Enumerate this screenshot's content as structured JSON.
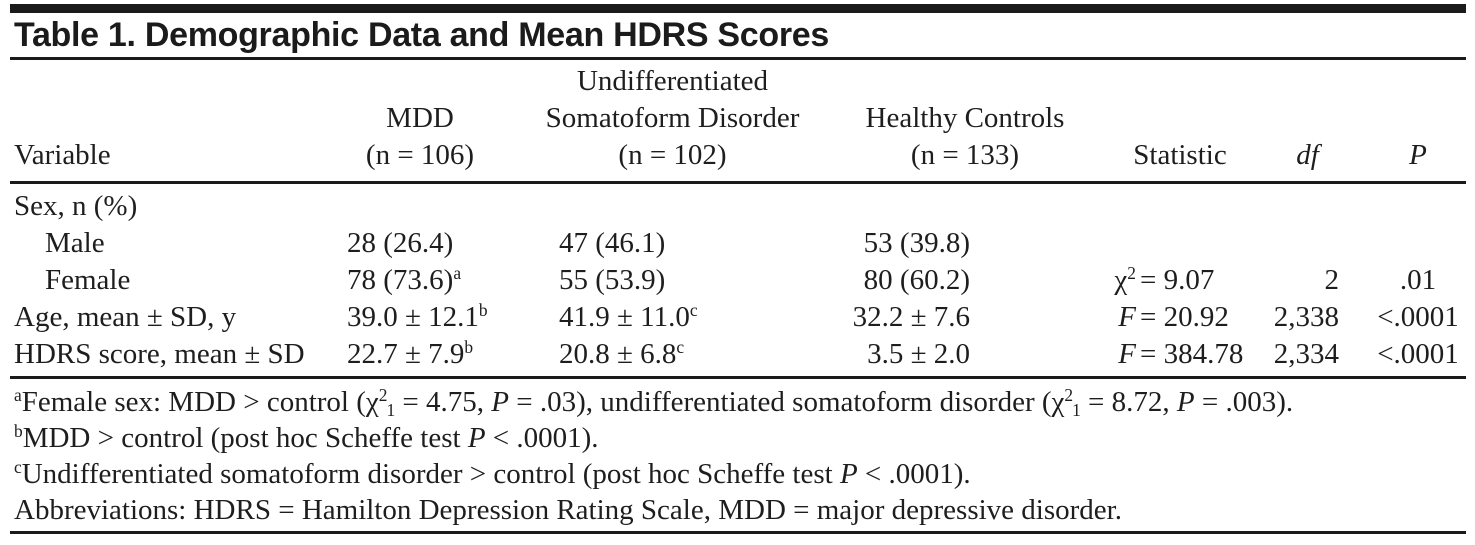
{
  "title": "Table 1. Demographic Data and Mean HDRS Scores",
  "table": {
    "columns": [
      {
        "id": "variable",
        "lines": [
          "Variable"
        ]
      },
      {
        "id": "mdd",
        "lines": [
          "MDD",
          "(n = 106)"
        ]
      },
      {
        "id": "undifferentiated-somatoform-disorder",
        "lines": [
          "Undifferentiated",
          "Somatoform Disorder",
          "(n = 102)"
        ]
      },
      {
        "id": "healthy-controls",
        "lines": [
          "Healthy Controls",
          "(n = 133)"
        ]
      },
      {
        "id": "statistic",
        "lines": [
          "Statistic"
        ]
      },
      {
        "id": "df",
        "lines": [
          "*df*"
        ]
      },
      {
        "id": "p",
        "lines": [
          "*P*"
        ]
      }
    ],
    "rows": [
      {
        "label": "Sex, n (%)",
        "mdd": "",
        "usd": "",
        "hc": "",
        "stat_pre": "",
        "stat_val": "",
        "df": "",
        "p": ""
      },
      {
        "label": "Male",
        "mdd": "28 (26.4)",
        "usd": "47 (46.1)",
        "hc": "53 (39.8)",
        "stat_pre": "",
        "stat_val": "",
        "df": "",
        "p": ""
      },
      {
        "label": "Female",
        "mdd": "78 (73.6)^a^",
        "usd": "55 (53.9)",
        "hc": "80 (60.2)",
        "stat_pre": "χ^2^",
        "stat_val": "= 9.07",
        "df": "2",
        "p": ".01"
      },
      {
        "label": "Age, mean ± SD, y",
        "mdd": "39.0 ± 12.1^b^",
        "usd": "41.9 ± 11.0^c^",
        "hc": "32.2 ± 7.6",
        "stat_pre": "*F*",
        "stat_val": "= 20.92",
        "df": "2,338",
        "p": "<.0001"
      },
      {
        "label": "HDRS score, mean ± SD",
        "mdd": "22.7 ± 7.9^b^",
        "usd": "20.8 ± 6.8^c^",
        "hc": "3.5 ± 2.0",
        "stat_pre": "*F*",
        "stat_val": "= 384.78",
        "df": "2,334",
        "p": "<.0001"
      }
    ]
  },
  "footnotes": [
    "^a^Female sex: MDD > control (χ^2^~1~ = 4.75, *P* = .03), undifferentiated somatoform disorder (χ^2^~1~ = 8.72, *P* = .003).",
    "^b^MDD > control (post hoc Scheffe test *P* < .0001).",
    "^c^Undifferentiated somatoform disorder > control (post hoc Scheffe test *P* < .0001).",
    "Abbreviations: HDRS = Hamilton Depression Rating Scale, MDD = major depressive disorder."
  ],
  "colors": {
    "text": "#1e1e1e",
    "rule": "#1b1b1b",
    "background": "#ffffff"
  }
}
